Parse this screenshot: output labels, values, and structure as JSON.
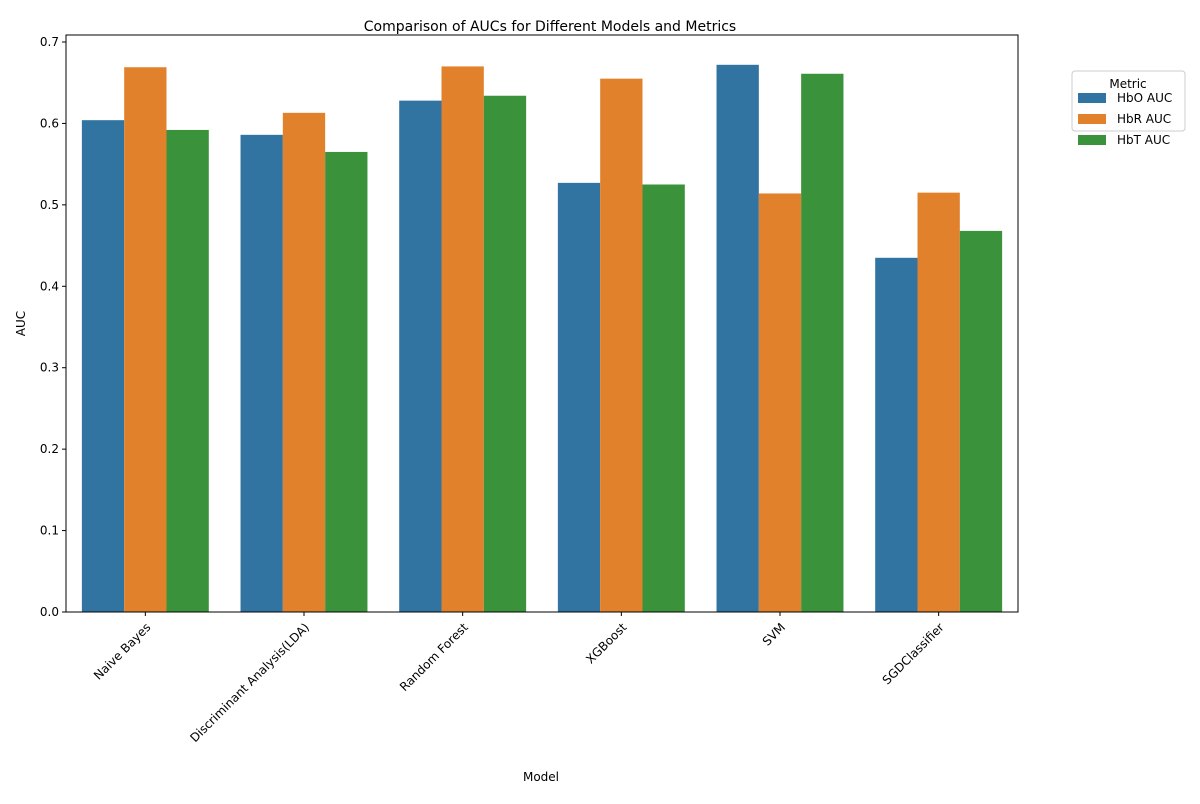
{
  "chart_data": {
    "type": "bar",
    "title": "Comparison of AUCs for Different Models and Metrics",
    "xlabel": "Model",
    "ylabel": "AUC",
    "ylim": [
      0,
      0.7
    ],
    "yticks": [
      "0.0",
      "0.1",
      "0.2",
      "0.3",
      "0.4",
      "0.5",
      "0.6",
      "0.7"
    ],
    "categories": [
      "Naive Bayes",
      "Discriminant Analysis(LDA)",
      "Random Forest",
      "XGBoost",
      "SVM",
      "SGDClassifier"
    ],
    "legend": {
      "title": "Metric",
      "placement": "outside-top-right"
    },
    "grid": false,
    "series": [
      {
        "name": "HbO AUC",
        "color": "#3274a1",
        "values": [
          0.604,
          0.586,
          0.628,
          0.527,
          0.672,
          0.435
        ]
      },
      {
        "name": "HbR AUC",
        "color": "#e1812c",
        "values": [
          0.669,
          0.613,
          0.67,
          0.655,
          0.514,
          0.515
        ]
      },
      {
        "name": "HbT AUC",
        "color": "#3a923a",
        "values": [
          0.592,
          0.565,
          0.634,
          0.525,
          0.661,
          0.468
        ]
      }
    ]
  }
}
